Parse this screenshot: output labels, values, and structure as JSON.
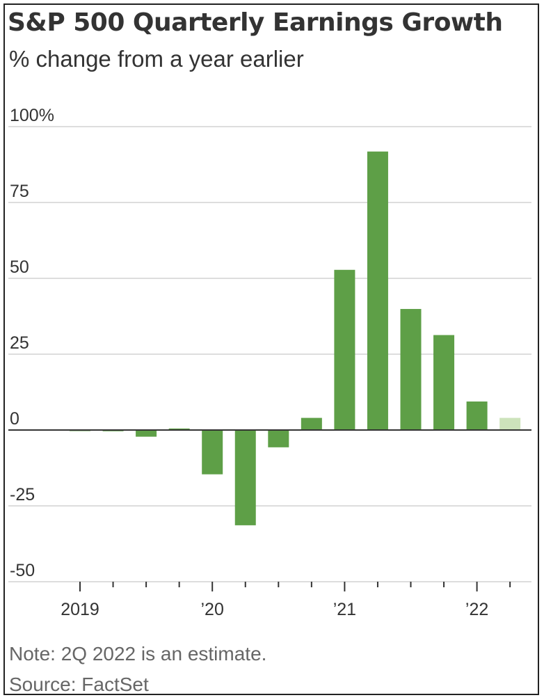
{
  "chart_data": {
    "type": "bar",
    "title": "S&P 500 Quarterly Earnings Growth",
    "subtitle": "% change from a year earlier",
    "ylabel": "% change from a year earlier",
    "xlabel": "",
    "ylim": [
      -50,
      100
    ],
    "yticks": [
      {
        "value": 100,
        "label": "100%"
      },
      {
        "value": 75,
        "label": "75"
      },
      {
        "value": 50,
        "label": "50"
      },
      {
        "value": 25,
        "label": "25"
      },
      {
        "value": 0,
        "label": "0"
      },
      {
        "value": -25,
        "label": "-25"
      },
      {
        "value": -50,
        "label": "-50"
      }
    ],
    "categories": [
      "1Q 2019",
      "2Q 2019",
      "3Q 2019",
      "4Q 2019",
      "1Q 2020",
      "2Q 2020",
      "3Q 2020",
      "4Q 2020",
      "1Q 2021",
      "2Q 2021",
      "3Q 2021",
      "4Q 2021",
      "1Q 2022",
      "2Q 2022"
    ],
    "values": [
      -0.3,
      -0.4,
      -2.2,
      0.5,
      -14.6,
      -31.4,
      -5.7,
      4.0,
      52.8,
      91.8,
      39.9,
      31.3,
      9.4,
      4.0
    ],
    "estimate": [
      false,
      false,
      false,
      false,
      false,
      false,
      false,
      false,
      false,
      false,
      false,
      false,
      false,
      true
    ],
    "xticks": [
      {
        "index": 0,
        "label": "2019"
      },
      {
        "index": 4,
        "label": "’20"
      },
      {
        "index": 8,
        "label": "’21"
      },
      {
        "index": 12,
        "label": "’22"
      }
    ],
    "colors": {
      "actual": "#5e9f47",
      "estimate": "#cde3bb",
      "grid": "#dddddd",
      "zero": "#333333"
    },
    "grid": true
  },
  "footer": {
    "note": "Note: 2Q 2022 is an estimate.",
    "source": "Source: FactSet"
  }
}
